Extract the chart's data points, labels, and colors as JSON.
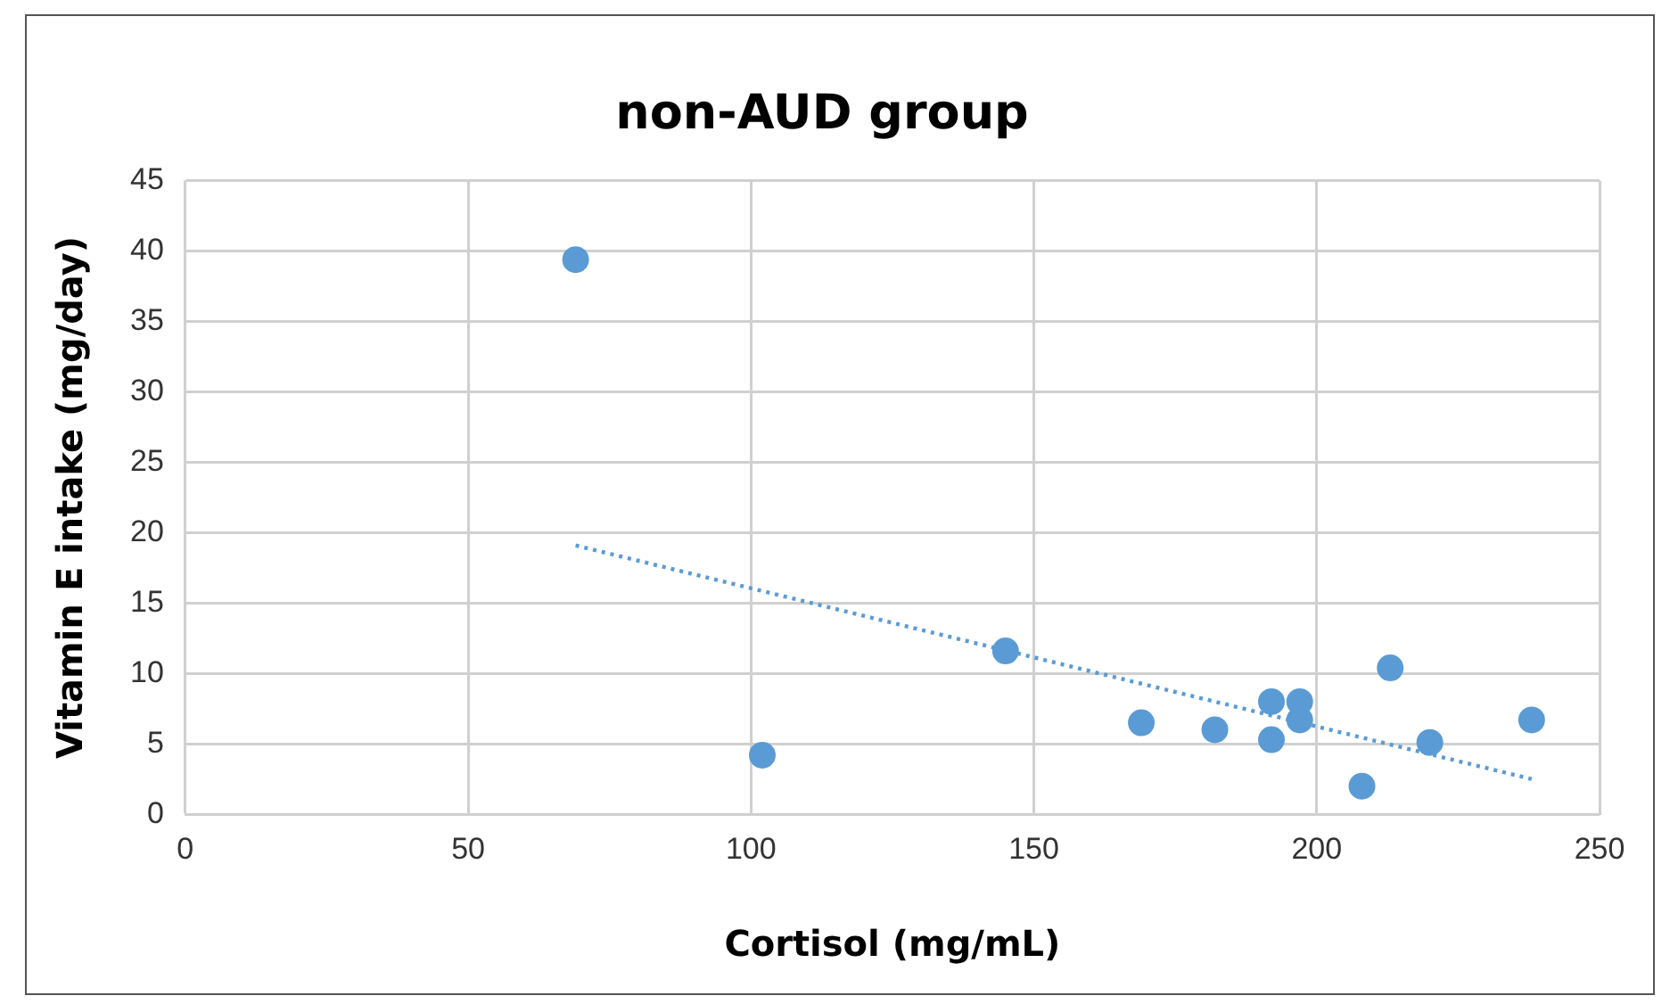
{
  "chart_data": {
    "type": "scatter",
    "title": "non-AUD group",
    "xlabel": "Cortisol (mg/mL)",
    "ylabel": "Vitamin E intake (mg/day)",
    "xlim": [
      0,
      250
    ],
    "xticks": [
      0,
      50,
      100,
      150,
      200,
      250
    ],
    "ylim": [
      0,
      45
    ],
    "yticks": [
      0,
      5,
      10,
      15,
      20,
      25,
      30,
      35,
      40,
      45
    ],
    "grid": true,
    "marker": "circle",
    "series": [
      {
        "color": "#5b9bd5",
        "x": [
          69,
          102,
          145,
          169,
          182,
          192,
          192,
          197,
          197,
          208,
          213,
          220,
          238
        ],
        "values": [
          39.4,
          4.2,
          11.6,
          6.5,
          6.0,
          8.0,
          5.3,
          8.0,
          6.7,
          2.0,
          10.4,
          5.1,
          6.7
        ]
      },
      {
        "type": "line",
        "color": "#5b9bd5",
        "line_style": "dotted",
        "marker": "none",
        "x": [
          69,
          238
        ],
        "values": [
          19.1,
          2.5
        ]
      }
    ]
  }
}
